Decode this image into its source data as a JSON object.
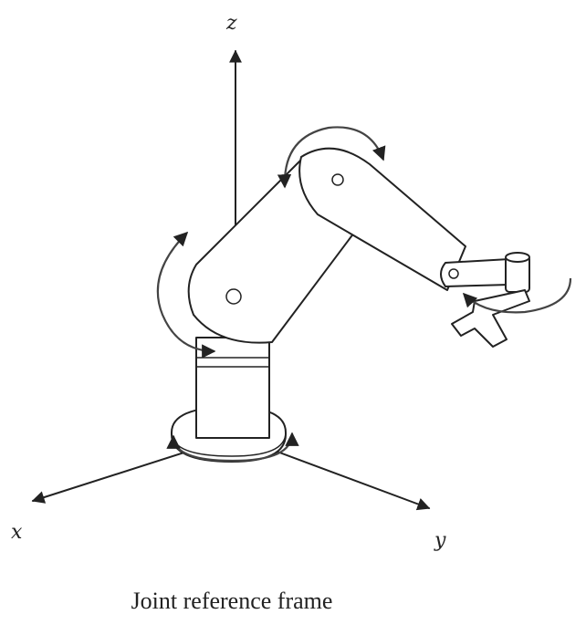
{
  "axes": {
    "z": "z",
    "x": "x",
    "y": "y"
  },
  "caption": "Joint reference frame",
  "colors": {
    "ink": "#222222",
    "paper": "#ffffff"
  }
}
